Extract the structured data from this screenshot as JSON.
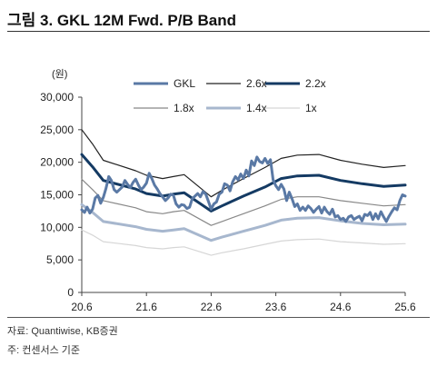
{
  "figure": {
    "title": "그림 3. GKL 12M Fwd. P/B Band",
    "source": "자료: Quantiwise, KB증권",
    "footnote": "주: 컨센서스 기준"
  },
  "chart_data": {
    "type": "line",
    "unit_label": "(원)",
    "ylim": [
      0,
      30000
    ],
    "yticks": [
      0,
      5000,
      10000,
      15000,
      20000,
      25000,
      30000
    ],
    "ytick_labels": [
      "0",
      "5,000",
      "10,000",
      "15,000",
      "20,000",
      "25,000",
      "30,000"
    ],
    "xlim": [
      0,
      60
    ],
    "xticks": [
      0,
      12,
      24,
      36,
      48,
      60
    ],
    "xtick_labels": [
      "20.6",
      "21.6",
      "22.6",
      "23.6",
      "24.6",
      "25.6"
    ],
    "legend_position": "top",
    "series": [
      {
        "name": "GKL",
        "color": "#5a79a5",
        "width": 3,
        "x": [
          0,
          0.5,
          1,
          1.5,
          2,
          2.5,
          3,
          3.5,
          4,
          4.5,
          5,
          5.5,
          6,
          6.5,
          7,
          7.5,
          8,
          8.5,
          9,
          9.5,
          10,
          10.5,
          11,
          11.5,
          12,
          12.5,
          13,
          13.5,
          14,
          14.5,
          15,
          15.5,
          16,
          16.5,
          17,
          17.5,
          18,
          18.5,
          19,
          19.5,
          20,
          20.5,
          21,
          21.5,
          22,
          22.5,
          23,
          23.5,
          24,
          24.5,
          25,
          25.5,
          26,
          26.5,
          27,
          27.5,
          28,
          28.5,
          29,
          29.5,
          30,
          30.5,
          31,
          31.5,
          32,
          32.5,
          33,
          33.5,
          34,
          34.5,
          35,
          35.5,
          36,
          36.5,
          37,
          37.5,
          38,
          38.5,
          39,
          39.5,
          40,
          40.5,
          41,
          41.5,
          42,
          42.5,
          43,
          43.5,
          44,
          44.5,
          45,
          45.5,
          46,
          46.5,
          47,
          47.5,
          48,
          48.5,
          49,
          49.5,
          50,
          50.5,
          51,
          51.5,
          52,
          52.5,
          53,
          53.5,
          54,
          54.5,
          55,
          55.5,
          56,
          56.5,
          57,
          57.5,
          58,
          58.5,
          59,
          59.5,
          60
        ],
        "y": [
          12700,
          12300,
          13100,
          12200,
          12800,
          14500,
          14900,
          13700,
          14600,
          16000,
          17800,
          17200,
          15800,
          15400,
          15800,
          16200,
          17200,
          16600,
          16100,
          16900,
          17400,
          16500,
          15800,
          16200,
          16800,
          18300,
          17500,
          16500,
          15900,
          15200,
          14700,
          14100,
          14500,
          15100,
          14900,
          13600,
          13100,
          13500,
          13400,
          12900,
          13100,
          14400,
          14800,
          15200,
          14700,
          15500,
          15100,
          14000,
          12800,
          13600,
          13900,
          15100,
          15400,
          16700,
          16500,
          15600,
          17000,
          17800,
          17300,
          18200,
          17500,
          18800,
          17900,
          20200,
          19500,
          20800,
          20100,
          19900,
          20600,
          19800,
          20400,
          17300,
          16400,
          15800,
          16600,
          15900,
          14100,
          15400,
          14400,
          13200,
          13600,
          12600,
          13100,
          12600,
          13300,
          12900,
          12300,
          12800,
          13200,
          12200,
          13100,
          12400,
          12000,
          12800,
          11600,
          11800,
          11200,
          11400,
          10900,
          11600,
          11800,
          11200,
          11500,
          11700,
          11000,
          12000,
          11800,
          12300,
          11200,
          12100,
          11300,
          12400,
          11600,
          10900,
          11700,
          12400,
          13000,
          12700,
          14100,
          15000,
          14800
        ]
      },
      {
        "name": "2.6x",
        "color": "#222222",
        "width": 1.2,
        "x": [
          0,
          2,
          4,
          10,
          12,
          15,
          17,
          19,
          24,
          26,
          30,
          34,
          37,
          40,
          44,
          48,
          52,
          56,
          60
        ],
        "y": [
          25000,
          22800,
          20300,
          18700,
          18000,
          17500,
          17800,
          18100,
          14700,
          15700,
          17500,
          19200,
          20600,
          21100,
          21200,
          20300,
          19700,
          19200,
          19500
        ]
      },
      {
        "name": "2.2x",
        "color": "#143a63",
        "width": 3,
        "x": [
          0,
          2,
          4,
          10,
          12,
          15,
          17,
          19,
          24,
          26,
          30,
          34,
          37,
          40,
          44,
          48,
          52,
          56,
          60
        ],
        "y": [
          21200,
          19300,
          17200,
          15900,
          15200,
          14800,
          15100,
          15300,
          12500,
          13300,
          14800,
          16200,
          17500,
          17900,
          18000,
          17200,
          16700,
          16300,
          16500
        ]
      },
      {
        "name": "1.8x",
        "color": "#888888",
        "width": 1.2,
        "x": [
          0,
          2,
          4,
          10,
          12,
          15,
          17,
          19,
          24,
          26,
          30,
          34,
          37,
          40,
          44,
          48,
          52,
          56,
          60
        ],
        "y": [
          17400,
          15800,
          14100,
          13000,
          12400,
          12100,
          12400,
          12600,
          10300,
          10900,
          12100,
          13300,
          14300,
          14700,
          14700,
          14100,
          13700,
          13300,
          13500
        ]
      },
      {
        "name": "1.4x",
        "color": "#a7b7ce",
        "width": 3,
        "x": [
          0,
          2,
          4,
          10,
          12,
          15,
          17,
          19,
          24,
          26,
          30,
          34,
          37,
          40,
          44,
          48,
          52,
          56,
          60
        ],
        "y": [
          13500,
          12300,
          10900,
          10100,
          9700,
          9400,
          9600,
          9800,
          8000,
          8500,
          9400,
          10300,
          11100,
          11400,
          11500,
          11000,
          10600,
          10400,
          10500
        ]
      },
      {
        "name": "1x",
        "color": "#d6d6d6",
        "width": 1.2,
        "x": [
          0,
          2,
          4,
          10,
          12,
          15,
          17,
          19,
          24,
          26,
          30,
          34,
          37,
          40,
          44,
          48,
          52,
          56,
          60
        ],
        "y": [
          9600,
          8800,
          7800,
          7200,
          6900,
          6700,
          6900,
          7000,
          5700,
          6100,
          6700,
          7400,
          7900,
          8100,
          8200,
          7800,
          7600,
          7400,
          7500
        ]
      }
    ]
  }
}
